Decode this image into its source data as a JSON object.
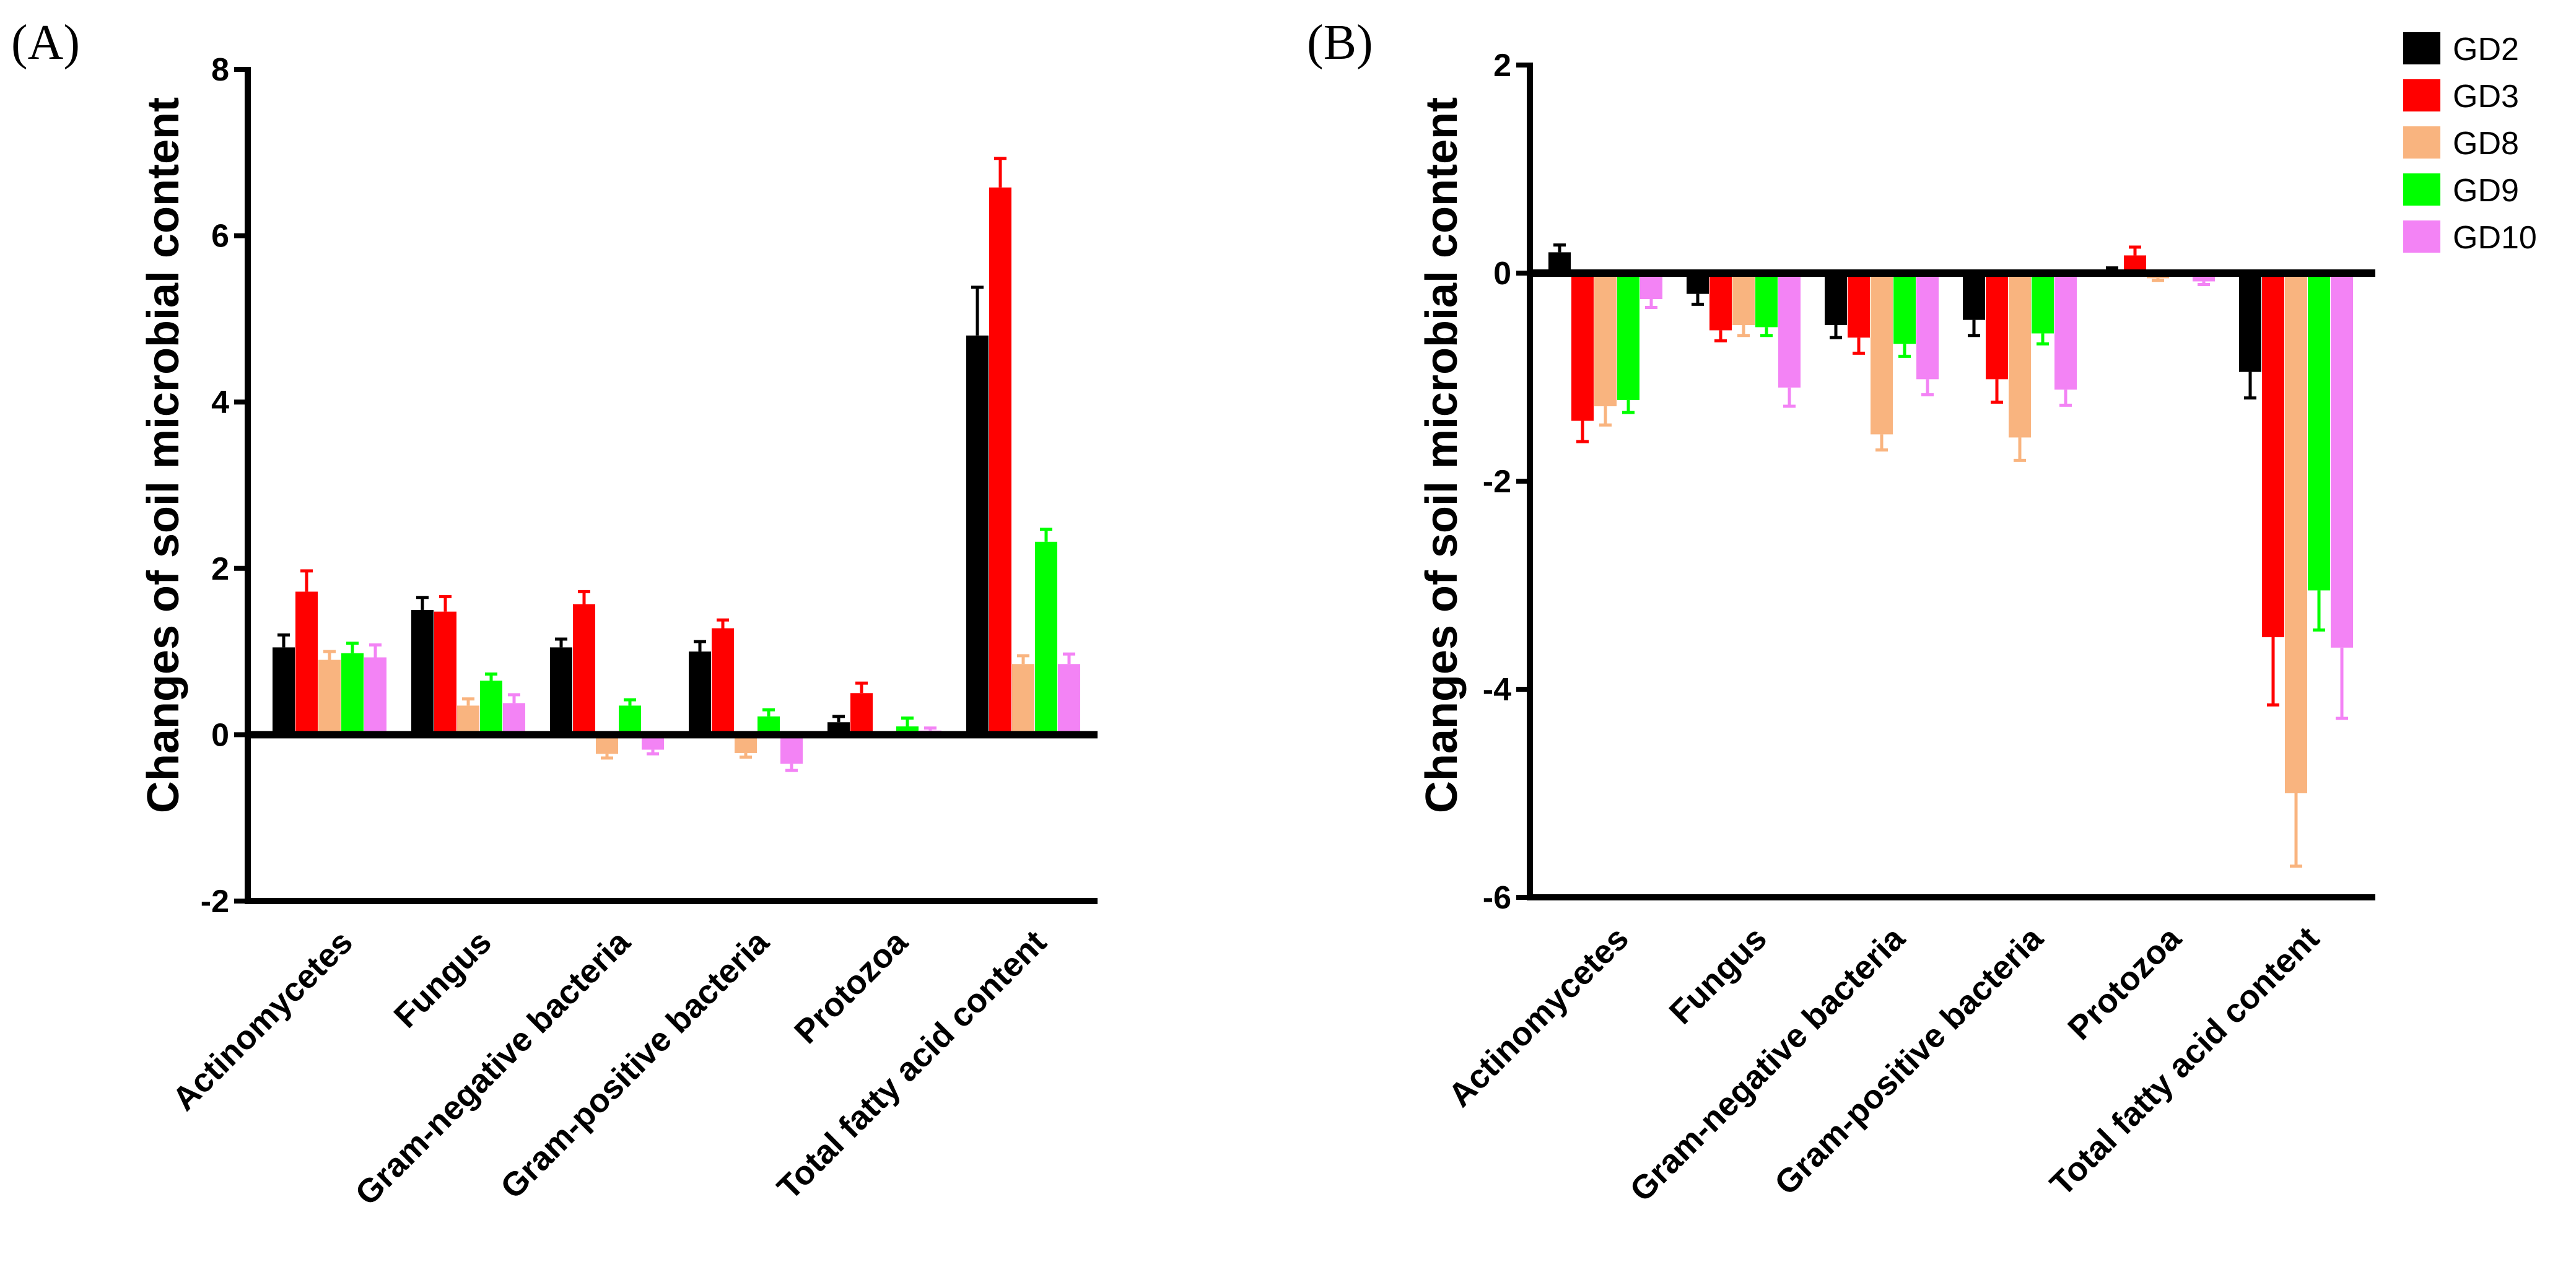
{
  "chart_data": [
    {
      "panel": "(A)",
      "type": "bar",
      "ylabel": "Changes of soil microbial content",
      "ylim": [
        -2,
        8
      ],
      "yticks": [
        -2,
        0,
        2,
        4,
        6,
        8
      ],
      "categories": [
        "Actinomycetes",
        "Fungus",
        "Gram-negative bacteria",
        "Gram-positive bacteria",
        "Protozoa",
        "Total fatty acid content"
      ],
      "series": [
        {
          "name": "GD2",
          "color": "#000000",
          "values": [
            1.05,
            1.5,
            1.05,
            1.0,
            0.15,
            4.8
          ],
          "errors": [
            0.15,
            0.15,
            0.1,
            0.12,
            0.07,
            0.58
          ]
        },
        {
          "name": "GD3",
          "color": "#ff0000",
          "values": [
            1.72,
            1.48,
            1.57,
            1.28,
            0.5,
            6.58
          ],
          "errors": [
            0.25,
            0.18,
            0.15,
            0.1,
            0.12,
            0.35
          ]
        },
        {
          "name": "GD8",
          "color": "#f9b47f",
          "values": [
            0.9,
            0.35,
            -0.23,
            -0.22,
            0.0,
            0.85
          ],
          "errors": [
            0.1,
            0.08,
            0.05,
            0.05,
            0.02,
            0.1
          ]
        },
        {
          "name": "GD9",
          "color": "#00ff00",
          "values": [
            0.98,
            0.65,
            0.35,
            0.22,
            0.1,
            2.32
          ],
          "errors": [
            0.12,
            0.08,
            0.07,
            0.08,
            0.1,
            0.15
          ]
        },
        {
          "name": "GD10",
          "color": "#f383f5",
          "values": [
            0.93,
            0.38,
            -0.18,
            -0.35,
            0.05,
            0.85
          ],
          "errors": [
            0.15,
            0.1,
            0.05,
            0.08,
            0.03,
            0.12
          ]
        }
      ]
    },
    {
      "panel": "(B)",
      "type": "bar",
      "ylabel": "Changes of soil microbial content",
      "ylim": [
        -6,
        2
      ],
      "yticks": [
        -6,
        -4,
        -2,
        0,
        2
      ],
      "categories": [
        "Actinomycetes",
        "Fungus",
        "Gram-negative bacteria",
        "Gram-positive bacteria",
        "Protozoa",
        "Total fatty acid content"
      ],
      "series": [
        {
          "name": "GD2",
          "color": "#000000",
          "values": [
            0.2,
            -0.2,
            -0.5,
            -0.45,
            0.03,
            -0.95
          ],
          "errors": [
            0.07,
            0.1,
            0.12,
            0.15,
            0.02,
            0.25
          ]
        },
        {
          "name": "GD3",
          "color": "#ff0000",
          "values": [
            -1.42,
            -0.55,
            -0.62,
            -1.02,
            0.17,
            -3.5
          ],
          "errors": [
            0.2,
            0.1,
            0.15,
            0.22,
            0.08,
            0.65
          ]
        },
        {
          "name": "GD8",
          "color": "#f9b47f",
          "values": [
            -1.28,
            -0.5,
            -1.55,
            -1.58,
            -0.05,
            -5.0
          ],
          "errors": [
            0.18,
            0.1,
            0.15,
            0.22,
            0.02,
            0.7
          ]
        },
        {
          "name": "GD9",
          "color": "#00ff00",
          "values": [
            -1.22,
            -0.52,
            -0.68,
            -0.58,
            0.0,
            -3.05
          ],
          "errors": [
            0.12,
            0.08,
            0.12,
            0.1,
            0.02,
            0.38
          ]
        },
        {
          "name": "GD10",
          "color": "#f383f5",
          "values": [
            -0.25,
            -1.1,
            -1.02,
            -1.12,
            -0.08,
            -3.6
          ],
          "errors": [
            0.08,
            0.18,
            0.15,
            0.15,
            0.03,
            0.68
          ]
        }
      ],
      "legend": {
        "placement": "top-right",
        "entries": [
          "GD2",
          "GD3",
          "GD8",
          "GD9",
          "GD10"
        ]
      }
    }
  ]
}
